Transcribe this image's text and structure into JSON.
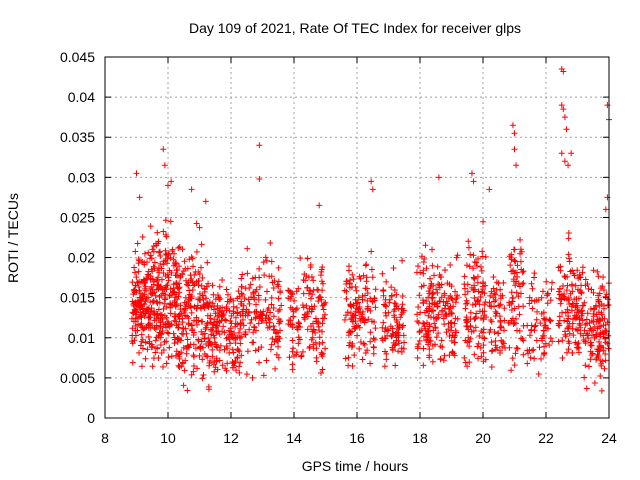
{
  "chart_data": {
    "type": "scatter",
    "title": "Day 109 of 2021, Rate Of TEC Index for receiver glps",
    "xlabel": "GPS time / hours",
    "ylabel": "ROTI / TECUs",
    "xlim": [
      8,
      24
    ],
    "ylim": [
      0,
      0.045
    ],
    "xticks": [
      8,
      10,
      12,
      14,
      16,
      18,
      20,
      22,
      24
    ],
    "xtick_labels": [
      "8",
      "10",
      "12",
      "14",
      "16",
      "18",
      "20",
      "22",
      "24"
    ],
    "yticks": [
      0,
      0.005,
      0.01,
      0.015,
      0.02,
      0.025,
      0.03,
      0.035,
      0.04,
      0.045
    ],
    "ytick_labels": [
      "0",
      "0.005",
      "0.01",
      "0.015",
      "0.02",
      "0.025",
      "0.03",
      "0.035",
      "0.04",
      "0.045"
    ],
    "grid": true,
    "marker": "+",
    "series_color": "#ff0000",
    "clusters": [
      {
        "x_start": 8.85,
        "x_end": 9.4,
        "y_low": 0.005,
        "y_high": 0.026,
        "density": 140
      },
      {
        "x_start": 9.4,
        "x_end": 10.3,
        "y_low": 0.004,
        "y_high": 0.03,
        "density": 220
      },
      {
        "x_start": 10.3,
        "x_end": 11.3,
        "y_low": 0.003,
        "y_high": 0.027,
        "density": 200
      },
      {
        "x_start": 11.3,
        "x_end": 12.3,
        "y_low": 0.004,
        "y_high": 0.022,
        "density": 160
      },
      {
        "x_start": 12.3,
        "x_end": 13.6,
        "y_low": 0.005,
        "y_high": 0.025,
        "density": 150
      },
      {
        "x_start": 13.8,
        "x_end": 14.4,
        "y_low": 0.006,
        "y_high": 0.024,
        "density": 60
      },
      {
        "x_start": 14.4,
        "x_end": 15.0,
        "y_low": 0.005,
        "y_high": 0.026,
        "density": 80
      },
      {
        "x_start": 15.6,
        "x_end": 16.6,
        "y_low": 0.004,
        "y_high": 0.025,
        "density": 130
      },
      {
        "x_start": 16.8,
        "x_end": 17.5,
        "y_low": 0.006,
        "y_high": 0.022,
        "density": 90
      },
      {
        "x_start": 17.9,
        "x_end": 18.4,
        "y_low": 0.006,
        "y_high": 0.026,
        "density": 80
      },
      {
        "x_start": 18.4,
        "x_end": 19.2,
        "y_low": 0.005,
        "y_high": 0.025,
        "density": 110
      },
      {
        "x_start": 19.4,
        "x_end": 20.1,
        "y_low": 0.004,
        "y_high": 0.028,
        "density": 110
      },
      {
        "x_start": 20.2,
        "x_end": 20.7,
        "y_low": 0.006,
        "y_high": 0.023,
        "density": 60
      },
      {
        "x_start": 20.8,
        "x_end": 21.3,
        "y_low": 0.005,
        "y_high": 0.03,
        "density": 70
      },
      {
        "x_start": 21.4,
        "x_end": 22.2,
        "y_low": 0.005,
        "y_high": 0.023,
        "density": 70
      },
      {
        "x_start": 22.4,
        "x_end": 23.2,
        "y_low": 0.006,
        "y_high": 0.026,
        "density": 130
      },
      {
        "x_start": 23.2,
        "x_end": 24.0,
        "y_low": 0.003,
        "y_high": 0.024,
        "density": 130
      }
    ],
    "outliers": [
      [
        9.0,
        0.0305
      ],
      [
        9.1,
        0.0275
      ],
      [
        9.85,
        0.0335
      ],
      [
        9.9,
        0.0315
      ],
      [
        10.0,
        0.029
      ],
      [
        10.1,
        0.0295
      ],
      [
        10.75,
        0.0285
      ],
      [
        11.2,
        0.027
      ],
      [
        12.9,
        0.034
      ],
      [
        12.9,
        0.0298
      ],
      [
        14.8,
        0.0265
      ],
      [
        16.45,
        0.0295
      ],
      [
        16.5,
        0.0285
      ],
      [
        18.6,
        0.03
      ],
      [
        19.65,
        0.0305
      ],
      [
        19.7,
        0.0295
      ],
      [
        20.2,
        0.0285
      ],
      [
        20.95,
        0.0365
      ],
      [
        21.0,
        0.0355
      ],
      [
        21.0,
        0.0335
      ],
      [
        21.05,
        0.0315
      ],
      [
        22.5,
        0.0435
      ],
      [
        22.55,
        0.0432
      ],
      [
        22.5,
        0.039
      ],
      [
        22.55,
        0.0385
      ],
      [
        22.6,
        0.0375
      ],
      [
        22.65,
        0.036
      ],
      [
        22.5,
        0.033
      ],
      [
        22.6,
        0.032
      ],
      [
        22.7,
        0.0315
      ],
      [
        22.8,
        0.033
      ],
      [
        23.95,
        0.039
      ],
      [
        24.0,
        0.0372
      ],
      [
        23.95,
        0.0275
      ],
      [
        23.9,
        0.026
      ]
    ]
  }
}
